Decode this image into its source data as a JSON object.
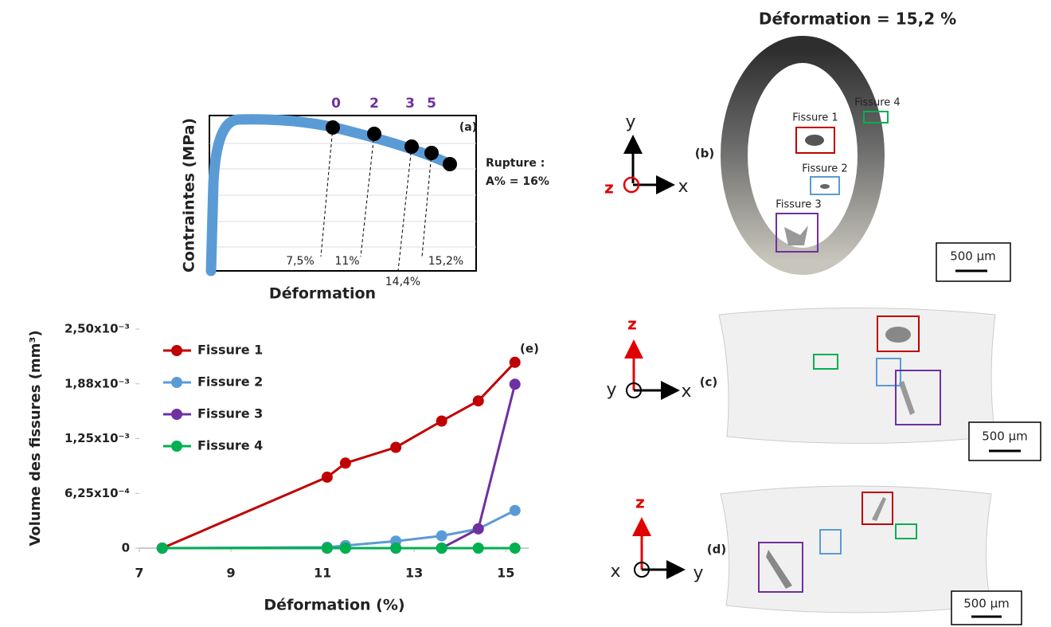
{
  "title": "Déformation = 15,2 %",
  "panel_a": {
    "label": "(a)",
    "y_label": "Contraintes (MPa)",
    "x_label": "Déformation",
    "states": [
      "0",
      "2",
      "3",
      "5"
    ],
    "strains": [
      "7,5%",
      "11%",
      "14,4%",
      "15,2%"
    ],
    "rupture": [
      "Rupture :",
      "A% = 16%"
    ]
  },
  "panel_b": {
    "label": "(b)",
    "axes": {
      "x": "x",
      "y": "y",
      "z": "z"
    },
    "boxes": [
      "Fissure 1",
      "Fissure 2",
      "Fissure 3",
      "Fissure 4"
    ],
    "scale": "500 µm"
  },
  "panel_c": {
    "label": "(c)",
    "axes": {
      "x": "x",
      "y": "y",
      "z": "z"
    },
    "scale": "500 µm"
  },
  "panel_d": {
    "label": "(d)",
    "axes": {
      "x": "x",
      "y": "y",
      "z": "z"
    },
    "scale": "500 µm"
  },
  "chart_data": [
    {
      "type": "line",
      "panel_label": "(e)",
      "xlabel": "Déformation (%)",
      "ylabel": "Volume des fissures (mm³)",
      "x": [
        7.5,
        11.1,
        11.5,
        12.6,
        13.6,
        14.4,
        15.2
      ],
      "series": [
        {
          "name": "Fissure 1",
          "color": "#c00000",
          "values": [
            0,
            0.00081,
            0.00097,
            0.00115,
            0.00145,
            0.00168,
            0.00212
          ]
        },
        {
          "name": "Fissure 2",
          "color": "#5b9bd5",
          "values": [
            0,
            1e-05,
            3e-05,
            8e-05,
            0.00014,
            0.00022,
            0.00043
          ]
        },
        {
          "name": "Fissure 3",
          "color": "#7030a0",
          "values": [
            0,
            0,
            0,
            0,
            0,
            0.00022,
            0.00187
          ]
        },
        {
          "name": "Fissure 4",
          "color": "#00b050",
          "values": [
            0,
            0,
            0,
            0,
            0,
            0,
            0
          ]
        }
      ],
      "xlim": [
        7,
        15.5
      ],
      "ylim": [
        0,
        0.0025
      ],
      "xticks": [
        7,
        9,
        11,
        13,
        15
      ],
      "yticks": [
        0,
        {
          "value": 0.000625,
          "label": "6,25x10⁻⁴"
        },
        {
          "value": 0.00125,
          "label": "1,25x10⁻³"
        },
        {
          "value": 0.001875,
          "label": "1,88x10⁻³"
        },
        {
          "value": 0.0025,
          "label": "2,50x10⁻³"
        }
      ],
      "legend": "upper left"
    }
  ]
}
